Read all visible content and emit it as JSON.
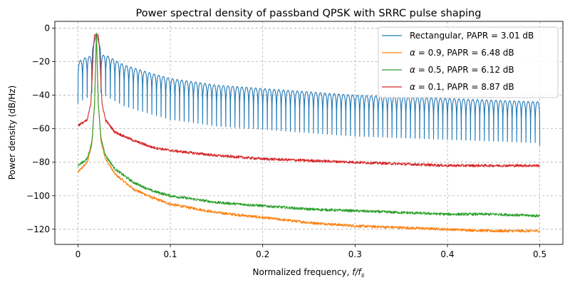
{
  "chart_data": {
    "type": "line",
    "title": "Power spectral density of passband QPSK with SRRC pulse shaping",
    "xlabel": "Normalized frequency, ",
    "xlabel_math": "f/f",
    "xlabel_sub": "s",
    "ylabel": "Power density (dB/Hz)",
    "xlim": [
      -0.025,
      0.525
    ],
    "ylim": [
      -129,
      4
    ],
    "xticks": [
      0.0,
      0.1,
      0.2,
      0.3,
      0.4,
      0.5
    ],
    "xtick_labels": [
      "0",
      "0.1",
      "0.2",
      "0.3",
      "0.4",
      "0.5"
    ],
    "yticks": [
      0,
      -20,
      -40,
      -60,
      -80,
      -100,
      -120
    ],
    "ytick_labels": [
      "0",
      "−20",
      "−40",
      "−60",
      "−80",
      "−100",
      "−120"
    ],
    "grid": true,
    "legend_location": "top-right",
    "carrier_frequency": 0.02,
    "series": [
      {
        "name": "Rectangular",
        "alpha_label": "",
        "legend_label": "Rectangular, PAPR = 3.01 dB",
        "color": "#1f77b4",
        "shape": "sinc",
        "peak": -3,
        "null_spacing": 0.005,
        "envelope_points": [
          [
            0.0,
            -20
          ],
          [
            0.01,
            -17
          ],
          [
            0.03,
            -16
          ],
          [
            0.05,
            -22
          ],
          [
            0.08,
            -27
          ],
          [
            0.1,
            -30
          ],
          [
            0.15,
            -34
          ],
          [
            0.2,
            -36
          ],
          [
            0.25,
            -38
          ],
          [
            0.3,
            -40
          ],
          [
            0.35,
            -41
          ],
          [
            0.4,
            -42
          ],
          [
            0.45,
            -43
          ],
          [
            0.5,
            -44
          ]
        ],
        "start_value": -45,
        "end_value": -70
      },
      {
        "name": "alpha = 0.9",
        "alpha_label": "0.9",
        "legend_label": "α = 0.9, PAPR = 6.48 dB",
        "color": "#ff7f0e",
        "shape": "shaped",
        "peak": -3,
        "points": [
          [
            0.0,
            -86
          ],
          [
            0.01,
            -80
          ],
          [
            0.015,
            -70
          ],
          [
            0.018,
            -45
          ],
          [
            0.02,
            -3
          ],
          [
            0.022,
            -45
          ],
          [
            0.025,
            -68
          ],
          [
            0.03,
            -78
          ],
          [
            0.04,
            -87
          ],
          [
            0.06,
            -96
          ],
          [
            0.08,
            -101
          ],
          [
            0.1,
            -105
          ],
          [
            0.15,
            -110
          ],
          [
            0.2,
            -113
          ],
          [
            0.25,
            -116
          ],
          [
            0.3,
            -118
          ],
          [
            0.35,
            -119
          ],
          [
            0.4,
            -120
          ],
          [
            0.45,
            -121
          ],
          [
            0.5,
            -121
          ]
        ],
        "noise": 0.8
      },
      {
        "name": "alpha = 0.5",
        "alpha_label": "0.5",
        "legend_label": "α = 0.5, PAPR = 6.12 dB",
        "color": "#2ca02c",
        "shape": "shaped",
        "peak": -3,
        "points": [
          [
            0.0,
            -82
          ],
          [
            0.01,
            -78
          ],
          [
            0.015,
            -68
          ],
          [
            0.018,
            -45
          ],
          [
            0.02,
            -3
          ],
          [
            0.022,
            -45
          ],
          [
            0.025,
            -66
          ],
          [
            0.03,
            -76
          ],
          [
            0.04,
            -84
          ],
          [
            0.06,
            -92
          ],
          [
            0.08,
            -97
          ],
          [
            0.1,
            -100
          ],
          [
            0.15,
            -104
          ],
          [
            0.2,
            -106
          ],
          [
            0.25,
            -108
          ],
          [
            0.3,
            -109
          ],
          [
            0.35,
            -110
          ],
          [
            0.4,
            -111
          ],
          [
            0.45,
            -111
          ],
          [
            0.5,
            -112
          ]
        ],
        "noise": 0.8
      },
      {
        "name": "alpha = 0.1",
        "alpha_label": "0.1",
        "legend_label": "α = 0.1, PAPR = 8.87 dB",
        "color": "#d62728",
        "shape": "shaped",
        "peak": -3,
        "points": [
          [
            0.0,
            -58
          ],
          [
            0.01,
            -55
          ],
          [
            0.014,
            -45
          ],
          [
            0.017,
            -10
          ],
          [
            0.018,
            -4
          ],
          [
            0.022,
            -4
          ],
          [
            0.023,
            -10
          ],
          [
            0.026,
            -45
          ],
          [
            0.03,
            -55
          ],
          [
            0.04,
            -62
          ],
          [
            0.06,
            -67
          ],
          [
            0.08,
            -71
          ],
          [
            0.1,
            -73
          ],
          [
            0.15,
            -76
          ],
          [
            0.2,
            -78
          ],
          [
            0.25,
            -79
          ],
          [
            0.3,
            -80
          ],
          [
            0.35,
            -81
          ],
          [
            0.4,
            -82
          ],
          [
            0.45,
            -82
          ],
          [
            0.5,
            -82
          ]
        ],
        "noise": 0.8
      }
    ]
  },
  "legend": {
    "items": [
      {
        "prefix": "Rectangular",
        "alpha_value": "",
        "papr": ", PAPR = 3.01 dB"
      },
      {
        "prefix": "",
        "alpha_value": " = 0.9",
        "papr": ", PAPR = 6.48 dB"
      },
      {
        "prefix": "",
        "alpha_value": " = 0.5",
        "papr": ", PAPR = 6.12 dB"
      },
      {
        "prefix": "",
        "alpha_value": " = 0.1",
        "papr": ", PAPR = 8.87 dB"
      }
    ],
    "alpha_symbol": "α"
  }
}
